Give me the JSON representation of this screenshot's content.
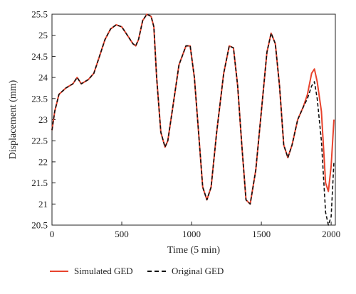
{
  "chart_data": {
    "type": "line",
    "title": "",
    "xlabel": "Time (5 min)",
    "ylabel": "Displacement (mm)",
    "xlim": [
      0,
      2030
    ],
    "ylim": [
      20.5,
      25.5
    ],
    "xticks": [
      0,
      500,
      1000,
      1500,
      2000
    ],
    "yticks": [
      20.5,
      21,
      21.5,
      22,
      22.5,
      23,
      23.5,
      24,
      24.5,
      25,
      25.5
    ],
    "xtick_labels": [
      "0",
      "500",
      "1000",
      "1500",
      "2000"
    ],
    "ytick_labels": [
      "20.5",
      "21",
      "21.5",
      "22",
      "22.5",
      "23",
      "23.5",
      "24",
      "24.5",
      "25",
      "25.5"
    ],
    "grid": false,
    "legend_position": "bottom",
    "series": [
      {
        "name": "Simulated GED",
        "color": "#e8432d",
        "style": "solid",
        "points": [
          [
            0,
            22.75
          ],
          [
            20,
            23.2
          ],
          [
            50,
            23.6
          ],
          [
            100,
            23.75
          ],
          [
            150,
            23.85
          ],
          [
            180,
            24.0
          ],
          [
            210,
            23.85
          ],
          [
            260,
            23.95
          ],
          [
            300,
            24.1
          ],
          [
            340,
            24.5
          ],
          [
            380,
            24.9
          ],
          [
            420,
            25.15
          ],
          [
            460,
            25.25
          ],
          [
            500,
            25.2
          ],
          [
            540,
            25.0
          ],
          [
            580,
            24.8
          ],
          [
            600,
            24.75
          ],
          [
            620,
            24.9
          ],
          [
            650,
            25.35
          ],
          [
            680,
            25.5
          ],
          [
            710,
            25.45
          ],
          [
            730,
            25.2
          ],
          [
            750,
            24.0
          ],
          [
            780,
            22.7
          ],
          [
            810,
            22.35
          ],
          [
            830,
            22.5
          ],
          [
            870,
            23.4
          ],
          [
            910,
            24.3
          ],
          [
            960,
            24.75
          ],
          [
            990,
            24.75
          ],
          [
            1020,
            24.0
          ],
          [
            1050,
            22.7
          ],
          [
            1080,
            21.4
          ],
          [
            1110,
            21.1
          ],
          [
            1140,
            21.4
          ],
          [
            1180,
            22.7
          ],
          [
            1230,
            24.1
          ],
          [
            1270,
            24.75
          ],
          [
            1300,
            24.7
          ],
          [
            1330,
            23.8
          ],
          [
            1360,
            22.4
          ],
          [
            1390,
            21.1
          ],
          [
            1420,
            21.0
          ],
          [
            1460,
            21.8
          ],
          [
            1500,
            23.2
          ],
          [
            1540,
            24.6
          ],
          [
            1570,
            25.05
          ],
          [
            1600,
            24.8
          ],
          [
            1630,
            23.8
          ],
          [
            1660,
            22.4
          ],
          [
            1690,
            22.1
          ],
          [
            1720,
            22.4
          ],
          [
            1760,
            23.0
          ],
          [
            1800,
            23.3
          ],
          [
            1830,
            23.6
          ],
          [
            1860,
            24.1
          ],
          [
            1880,
            24.2
          ],
          [
            1900,
            23.9
          ],
          [
            1930,
            23.2
          ],
          [
            1960,
            21.5
          ],
          [
            1980,
            21.3
          ],
          [
            2000,
            21.9
          ],
          [
            2020,
            23.0
          ]
        ]
      },
      {
        "name": "Original GED",
        "color": "#111111",
        "style": "dashed",
        "points": [
          [
            0,
            22.75
          ],
          [
            20,
            23.2
          ],
          [
            50,
            23.6
          ],
          [
            100,
            23.75
          ],
          [
            150,
            23.85
          ],
          [
            180,
            24.0
          ],
          [
            210,
            23.85
          ],
          [
            260,
            23.95
          ],
          [
            300,
            24.1
          ],
          [
            340,
            24.5
          ],
          [
            380,
            24.9
          ],
          [
            420,
            25.15
          ],
          [
            460,
            25.25
          ],
          [
            500,
            25.2
          ],
          [
            540,
            25.0
          ],
          [
            580,
            24.8
          ],
          [
            600,
            24.75
          ],
          [
            620,
            24.9
          ],
          [
            650,
            25.35
          ],
          [
            680,
            25.5
          ],
          [
            710,
            25.45
          ],
          [
            730,
            25.2
          ],
          [
            750,
            24.0
          ],
          [
            780,
            22.7
          ],
          [
            810,
            22.35
          ],
          [
            830,
            22.5
          ],
          [
            870,
            23.4
          ],
          [
            910,
            24.3
          ],
          [
            960,
            24.75
          ],
          [
            990,
            24.75
          ],
          [
            1020,
            24.0
          ],
          [
            1050,
            22.7
          ],
          [
            1080,
            21.4
          ],
          [
            1110,
            21.1
          ],
          [
            1140,
            21.4
          ],
          [
            1180,
            22.7
          ],
          [
            1230,
            24.1
          ],
          [
            1270,
            24.75
          ],
          [
            1300,
            24.7
          ],
          [
            1330,
            23.8
          ],
          [
            1360,
            22.4
          ],
          [
            1390,
            21.1
          ],
          [
            1420,
            21.0
          ],
          [
            1460,
            21.8
          ],
          [
            1500,
            23.2
          ],
          [
            1540,
            24.6
          ],
          [
            1570,
            25.05
          ],
          [
            1600,
            24.8
          ],
          [
            1630,
            23.8
          ],
          [
            1660,
            22.4
          ],
          [
            1690,
            22.1
          ],
          [
            1720,
            22.4
          ],
          [
            1760,
            23.0
          ],
          [
            1800,
            23.3
          ],
          [
            1830,
            23.5
          ],
          [
            1860,
            23.8
          ],
          [
            1880,
            23.9
          ],
          [
            1900,
            23.5
          ],
          [
            1930,
            22.5
          ],
          [
            1960,
            20.8
          ],
          [
            1980,
            20.5
          ],
          [
            2000,
            20.7
          ],
          [
            2020,
            22.0
          ]
        ]
      }
    ]
  },
  "legend": {
    "simulated_label": "Simulated GED",
    "original_label": "Original GED"
  }
}
